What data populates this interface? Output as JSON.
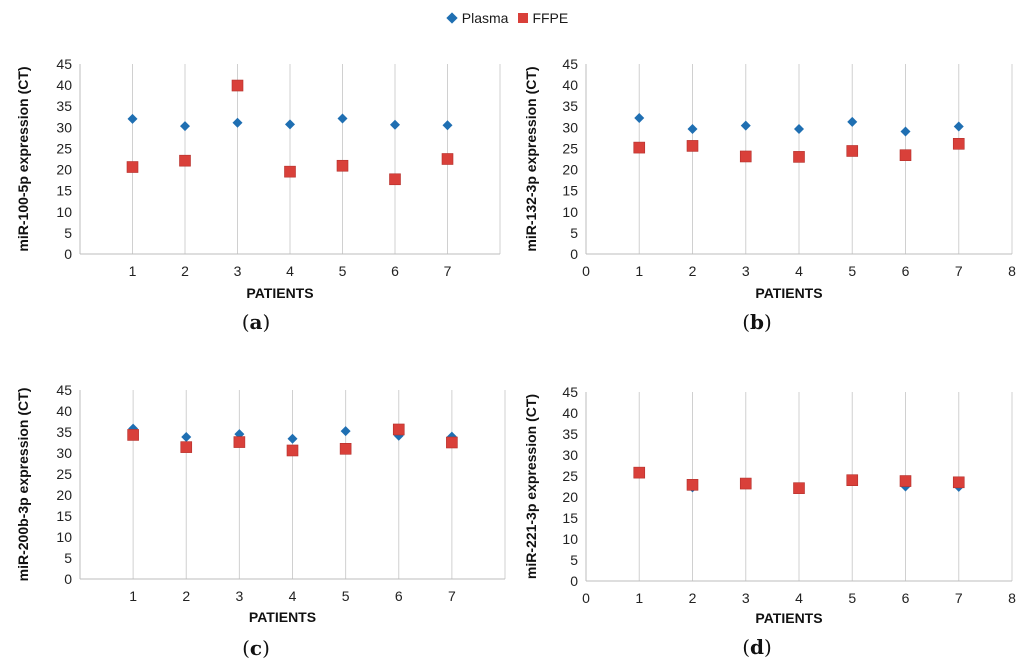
{
  "legend": {
    "items": [
      {
        "name": "Plasma",
        "color": "#1f6fb2",
        "marker": "diamond"
      },
      {
        "name": "FFPE",
        "color": "#d9403a",
        "marker": "square"
      }
    ]
  },
  "chart_data": [
    {
      "type": "scatter",
      "panel_label": "a",
      "ylabel": "miR-100-5p expression (CT)",
      "xlabel": "PATIENTS",
      "x_ticks": [
        "1",
        "2",
        "3",
        "4",
        "5",
        "6",
        "7"
      ],
      "xlim": [
        0,
        8
      ],
      "ylim": [
        0,
        45
      ],
      "y_ticks": [
        0,
        5,
        10,
        15,
        20,
        25,
        30,
        35,
        40,
        45
      ],
      "grid": "vertical",
      "series": [
        {
          "name": "Plasma",
          "x": [
            1,
            2,
            3,
            4,
            5,
            6,
            7
          ],
          "values": [
            32.0,
            30.3,
            31.1,
            30.7,
            32.1,
            30.6,
            30.5
          ]
        },
        {
          "name": "FFPE",
          "x": [
            1,
            2,
            3,
            4,
            5,
            6,
            7
          ],
          "values": [
            20.6,
            22.1,
            39.9,
            19.5,
            20.9,
            17.7,
            22.5
          ]
        }
      ]
    },
    {
      "type": "scatter",
      "panel_label": "b",
      "ylabel": "miR-132-3p expression (CT)",
      "xlabel": "PATIENTS",
      "x_ticks": [
        "0",
        "1",
        "2",
        "3",
        "4",
        "5",
        "6",
        "7",
        "8"
      ],
      "xlim": [
        0,
        8
      ],
      "ylim": [
        0,
        45
      ],
      "y_ticks": [
        0,
        5,
        10,
        15,
        20,
        25,
        30,
        35,
        40,
        45
      ],
      "grid": "vertical",
      "series": [
        {
          "name": "Plasma",
          "x": [
            1,
            2,
            3,
            4,
            5,
            6,
            7
          ],
          "values": [
            32.2,
            29.6,
            30.4,
            29.6,
            31.3,
            29.0,
            30.2
          ]
        },
        {
          "name": "FFPE",
          "x": [
            1,
            2,
            3,
            4,
            5,
            6,
            7
          ],
          "values": [
            25.2,
            25.6,
            23.1,
            23.0,
            24.4,
            23.4,
            26.1
          ]
        }
      ]
    },
    {
      "type": "scatter",
      "panel_label": "c",
      "ylabel": "miR-200b-3p expression (CT)",
      "xlabel": "PATIENTS",
      "x_ticks": [
        "1",
        "2",
        "3",
        "4",
        "5",
        "6",
        "7"
      ],
      "xlim": [
        0,
        8
      ],
      "ylim": [
        0,
        45
      ],
      "y_ticks": [
        0,
        5,
        10,
        15,
        20,
        25,
        30,
        35,
        40,
        45
      ],
      "grid": "vertical",
      "series": [
        {
          "name": "Plasma",
          "x": [
            1,
            2,
            3,
            4,
            5,
            6,
            7
          ],
          "values": [
            35.8,
            33.8,
            34.5,
            33.4,
            35.2,
            34.1,
            33.9
          ]
        },
        {
          "name": "FFPE",
          "x": [
            1,
            2,
            3,
            4,
            5,
            6,
            7
          ],
          "values": [
            34.3,
            31.4,
            32.6,
            30.6,
            31.0,
            35.6,
            32.5
          ]
        }
      ]
    },
    {
      "type": "scatter",
      "panel_label": "d",
      "ylabel": "miR-221-3p expression (CT)",
      "xlabel": "PATIENTS",
      "x_ticks": [
        "0",
        "1",
        "2",
        "3",
        "4",
        "5",
        "6",
        "7",
        "8"
      ],
      "xlim": [
        0,
        8
      ],
      "ylim": [
        0,
        45
      ],
      "y_ticks": [
        0,
        5,
        10,
        15,
        20,
        25,
        30,
        35,
        40,
        45
      ],
      "grid": "vertical",
      "series": [
        {
          "name": "Plasma",
          "x": [
            1,
            2,
            3,
            4,
            5,
            6,
            7
          ],
          "values": [
            25.6,
            22.3,
            23.0,
            22.0,
            23.9,
            22.5,
            22.4
          ]
        },
        {
          "name": "FFPE",
          "x": [
            1,
            2,
            3,
            4,
            5,
            6,
            7
          ],
          "values": [
            25.8,
            22.9,
            23.2,
            22.1,
            24.0,
            23.8,
            23.5
          ]
        }
      ]
    }
  ]
}
